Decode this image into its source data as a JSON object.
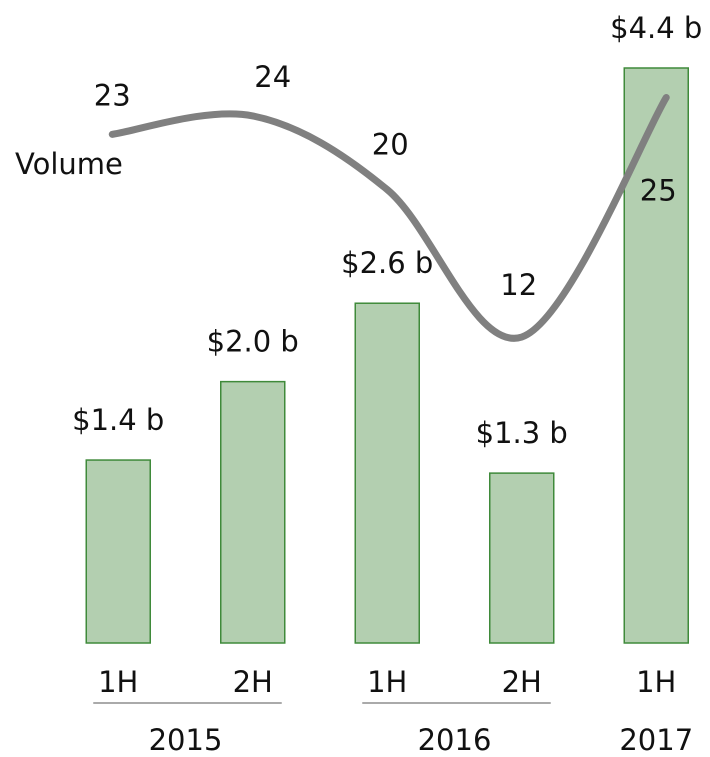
{
  "chart_data": {
    "type": "bar",
    "categories": [
      "1H",
      "2H",
      "1H",
      "2H",
      "1H"
    ],
    "groups": [
      {
        "label": "2015",
        "span": 2
      },
      {
        "label": "2016",
        "span": 2
      },
      {
        "label": "2017",
        "span": 1
      }
    ],
    "values": [
      1.4,
      2.0,
      2.6,
      1.3,
      4.4
    ],
    "value_labels": [
      "$1.4 b",
      "$2.0 b",
      "$2.6 b",
      "$1.3 b",
      "$4.4 b"
    ],
    "color": "#b3cfb0",
    "edge_color": "#3f8a3a",
    "ylim": [
      0,
      4.4
    ],
    "line": {
      "name": "Volume",
      "values": [
        23,
        24,
        20,
        12,
        25
      ],
      "color": "#808080",
      "axis": "y2"
    },
    "y2lim": [
      -4.6,
      26.6
    ]
  }
}
